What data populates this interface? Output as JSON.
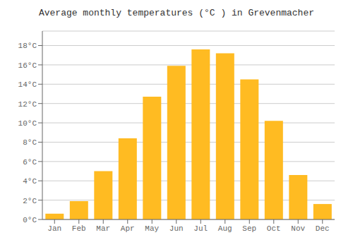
{
  "chart_data": {
    "type": "bar",
    "title": "Average monthly temperatures (°C ) in Grevenmacher",
    "categories": [
      "Jan",
      "Feb",
      "Mar",
      "Apr",
      "May",
      "Jun",
      "Jul",
      "Aug",
      "Sep",
      "Oct",
      "Nov",
      "Dec"
    ],
    "values": [
      0.6,
      1.9,
      5.0,
      8.4,
      12.7,
      15.9,
      17.6,
      17.2,
      14.5,
      10.2,
      4.6,
      1.6
    ],
    "color": "#FFBB22",
    "ylim": [
      0,
      19.5
    ],
    "yticks": [
      {
        "value": 0,
        "label": "0°C"
      },
      {
        "value": 2,
        "label": "2°C"
      },
      {
        "value": 4,
        "label": "4°C"
      },
      {
        "value": 6,
        "label": "6°C"
      },
      {
        "value": 8,
        "label": "8°C"
      },
      {
        "value": 10,
        "label": "10°C"
      },
      {
        "value": 12,
        "label": "12°C"
      },
      {
        "value": 14,
        "label": "14°C"
      },
      {
        "value": 16,
        "label": "16°C"
      },
      {
        "value": 18,
        "label": "18°C"
      }
    ],
    "grid": true
  }
}
